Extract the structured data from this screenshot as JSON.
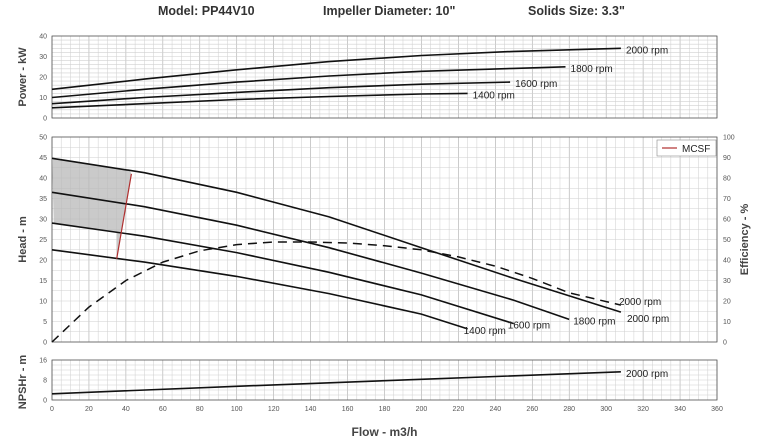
{
  "header": {
    "model": "Model: PP44V10",
    "impeller": "Impeller Diameter: 10\"",
    "solids": "Solids Size: 3.3\""
  },
  "colors": {
    "curve": "#111111",
    "mcsf": "#b03030",
    "grid": "#bbbbbb",
    "shade": "#b8b8b8"
  },
  "chart_data": [
    {
      "type": "line",
      "id": "power",
      "ylabel": "Power - kW",
      "xlabel": "",
      "xlim": [
        0,
        360
      ],
      "ylim": [
        0,
        40
      ],
      "yticks": [
        0,
        10,
        20,
        30,
        40
      ],
      "grid": true,
      "series": [
        {
          "name": "2000 rpm",
          "x": [
            0,
            50,
            100,
            150,
            200,
            250,
            308
          ],
          "y": [
            14.0,
            19.0,
            23.5,
            27.5,
            30.5,
            32.5,
            34.0
          ]
        },
        {
          "name": "1800 rpm",
          "x": [
            0,
            50,
            100,
            150,
            200,
            250,
            278
          ],
          "y": [
            10.0,
            14.0,
            17.5,
            20.5,
            22.8,
            24.2,
            25.0
          ]
        },
        {
          "name": "1600 rpm",
          "x": [
            0,
            50,
            100,
            150,
            200,
            248
          ],
          "y": [
            7.0,
            10.0,
            12.5,
            14.8,
            16.5,
            17.5
          ]
        },
        {
          "name": "1400 rpm",
          "x": [
            0,
            50,
            100,
            150,
            200,
            225
          ],
          "y": [
            5.0,
            7.0,
            9.0,
            10.5,
            11.7,
            12.0
          ]
        }
      ]
    },
    {
      "type": "line",
      "id": "head",
      "ylabel": "Head - m",
      "y2label": "Efficiency - %",
      "xlim": [
        0,
        360
      ],
      "ylim": [
        0,
        50
      ],
      "y2lim": [
        0,
        100
      ],
      "yticks": [
        0,
        5,
        10,
        15,
        20,
        25,
        30,
        35,
        40,
        45,
        50
      ],
      "y2ticks": [
        0,
        10,
        20,
        30,
        40,
        50,
        60,
        70,
        80,
        90,
        100
      ],
      "legend": [
        "MCSF"
      ],
      "legend_position": "top-right",
      "grid": true,
      "series": [
        {
          "name": "2000 rpm",
          "x": [
            0,
            50,
            100,
            150,
            200,
            250,
            308
          ],
          "y": [
            44.8,
            41.3,
            36.5,
            30.5,
            23.0,
            15.5,
            7.3
          ]
        },
        {
          "name": "1800 rpm",
          "x": [
            0,
            50,
            100,
            150,
            200,
            250,
            280
          ],
          "y": [
            36.5,
            33.0,
            28.5,
            23.0,
            16.8,
            10.2,
            5.5
          ]
        },
        {
          "name": "1600 rpm",
          "x": [
            0,
            50,
            100,
            150,
            200,
            250
          ],
          "y": [
            29.0,
            25.8,
            21.8,
            17.0,
            11.5,
            4.5
          ]
        },
        {
          "name": "1400 rpm",
          "x": [
            0,
            50,
            100,
            150,
            200,
            225
          ],
          "y": [
            22.5,
            19.5,
            16.0,
            11.8,
            6.8,
            3.2
          ]
        },
        {
          "name": "2000 rpm",
          "axis": "efficiency",
          "x": [
            0,
            20,
            40,
            60,
            80,
            100,
            120,
            140,
            160,
            180,
            200,
            220,
            240,
            260,
            280,
            308
          ],
          "y": [
            0,
            17,
            30,
            39,
            44.5,
            47.5,
            48.8,
            48.8,
            48.3,
            47,
            45,
            41.5,
            37,
            31,
            24,
            18
          ]
        },
        {
          "name": "MCSF",
          "x": [
            35,
            43
          ],
          "y": [
            20.3,
            41.0
          ]
        }
      ],
      "shaded_region": "operating limit"
    },
    {
      "type": "line",
      "id": "npshr",
      "ylabel": "NPSHr - m",
      "xlabel": "Flow - m3/h",
      "xlim": [
        0,
        360
      ],
      "ylim": [
        0,
        16
      ],
      "yticks": [
        0,
        8,
        16
      ],
      "xticks": [
        0,
        20,
        40,
        60,
        80,
        100,
        120,
        140,
        160,
        180,
        200,
        220,
        240,
        260,
        280,
        300,
        320,
        340,
        360
      ],
      "grid": true,
      "series": [
        {
          "name": "2000 rpm",
          "x": [
            0,
            100,
            200,
            308
          ],
          "y": [
            2.5,
            5.5,
            8.3,
            11.3
          ]
        }
      ]
    }
  ]
}
